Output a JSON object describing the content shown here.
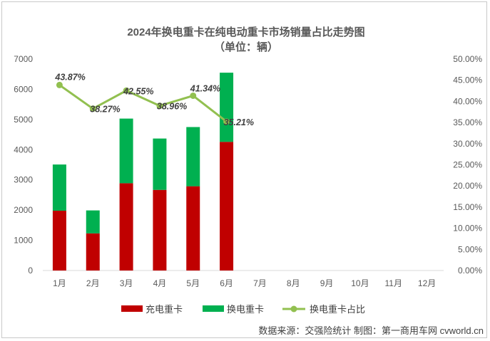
{
  "chart_data": {
    "type": "bar",
    "subtype": "stacked-bar-with-line",
    "title": "2024年换电重卡在纯电动重卡市场销量占比走势图",
    "subtitle": "（单位：辆）",
    "categories": [
      "1月",
      "2月",
      "3月",
      "4月",
      "5月",
      "6月",
      "7月",
      "8月",
      "9月",
      "10月",
      "11月",
      "12月"
    ],
    "series": [
      {
        "name": "充电重卡",
        "type": "bar",
        "axis": "left",
        "color": "#c00000",
        "values": [
          1980,
          1230,
          2890,
          2670,
          2790,
          4260,
          null,
          null,
          null,
          null,
          null,
          null
        ]
      },
      {
        "name": "换电重卡",
        "type": "bar",
        "axis": "left",
        "color": "#00b050",
        "values": [
          1530,
          760,
          2140,
          1700,
          1960,
          2290,
          null,
          null,
          null,
          null,
          null,
          null
        ]
      },
      {
        "name": "换电重卡占比",
        "type": "line",
        "axis": "right",
        "color": "#92c050",
        "values": [
          43.87,
          38.27,
          42.55,
          38.96,
          41.34,
          35.21,
          null,
          null,
          null,
          null,
          null,
          null
        ],
        "labels": [
          "43.87%",
          "38.27%",
          "42.55%",
          "38.96%",
          "41.34%",
          "35.21%"
        ]
      }
    ],
    "y_left": {
      "min": 0,
      "max": 7000,
      "step": 1000,
      "ticks": [
        "0",
        "1000",
        "2000",
        "3000",
        "4000",
        "5000",
        "6000",
        "7000"
      ]
    },
    "y_right": {
      "min": 0,
      "max": 50,
      "step": 5,
      "ticks": [
        "0.00%",
        "5.00%",
        "10.00%",
        "15.00%",
        "20.00%",
        "25.00%",
        "30.00%",
        "35.00%",
        "40.00%",
        "45.00%",
        "50.00%"
      ]
    },
    "gridlines": false,
    "legend_position": "bottom",
    "source": "数据来源：交强险统计  制图：第一商用车网 cvworld.cn"
  }
}
